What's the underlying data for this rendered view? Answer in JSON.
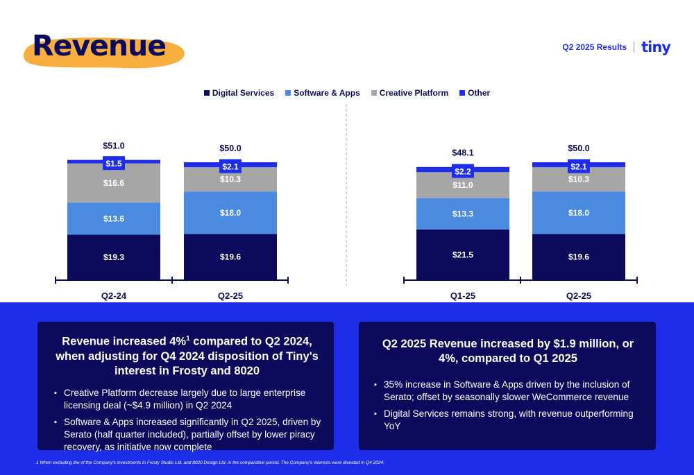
{
  "header": {
    "title": "Revenue",
    "results_label": "Q2 2025 Results",
    "logo_text": "tiny"
  },
  "colors": {
    "digital_services": "#0b0a5c",
    "software_apps": "#4a8ae0",
    "creative_platform": "#a6a6a6",
    "other": "#1e2ee8",
    "highlight_shape": "#f7ae3f"
  },
  "chart_data": {
    "type": "bar",
    "stacked": true,
    "categories": [
      "Q2-24",
      "Q2-25",
      "Q1-25",
      "Q2-25"
    ],
    "series": [
      {
        "name": "Digital Services",
        "values": [
          19.3,
          19.6,
          21.5,
          19.6
        ],
        "labels": [
          "$19.3",
          "$19.6",
          "$21.5",
          "$19.6"
        ]
      },
      {
        "name": "Software & Apps",
        "values": [
          13.6,
          18.0,
          13.3,
          18.0
        ],
        "labels": [
          "$13.6",
          "$18.0",
          "$13.3",
          "$18.0"
        ]
      },
      {
        "name": "Creative Platform",
        "values": [
          16.6,
          10.3,
          11.0,
          10.3
        ],
        "labels": [
          "$16.6",
          "$10.3",
          "$11.0",
          "$10.3"
        ]
      },
      {
        "name": "Other",
        "values": [
          1.5,
          2.1,
          2.2,
          2.1
        ],
        "labels": [
          "$1.5",
          "$2.1",
          "$2.2",
          "$2.1"
        ]
      }
    ],
    "totals": [
      51.0,
      50.0,
      48.1,
      50.0
    ],
    "total_labels": [
      "$51.0",
      "$50.0",
      "$48.1",
      "$50.0"
    ],
    "legend_position": "top-center",
    "grid": false,
    "groups_separated": true
  },
  "left_card": {
    "heading_pre": "Revenue increased 4%",
    "heading_sup": "1",
    "heading_post": " compared to Q2 2024, when adjusting for Q4 2024 disposition of Tiny's interest in Frosty and 8020",
    "bullets": [
      "Creative Platform decrease largely due to large enterprise licensing deal (~$4.9 million) in Q2 2024",
      "Software & Apps increased significantly in Q2 2025, driven by Serato (half quarter included), partially offset by lower piracy recovery, as initiative now complete"
    ]
  },
  "right_card": {
    "heading": "Q2 2025 Revenue increased by $1.9 million, or 4%, compared to Q1 2025",
    "bullets": [
      "35% increase in Software & Apps driven by the inclusion of Serato; offset by seasonally slower WeCommerce revenue",
      "Digital Services remains strong, with revenue outperforming YoY"
    ]
  },
  "footnote": "1 When excluding the of the Company's investments in Frosty Studio Ltd. and 8020 Design Ltd. in the comparative period. The Company's interests were divested in Q4 2024."
}
